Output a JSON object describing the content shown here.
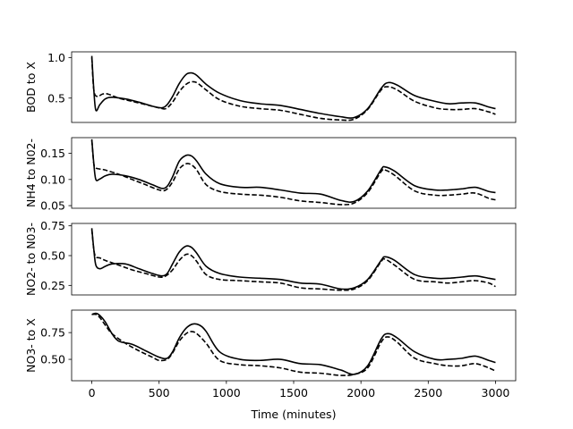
{
  "chart_data": {
    "type": "line",
    "xlabel": "Time (minutes)",
    "xlim": [
      -150,
      3150
    ],
    "xticks": [
      0,
      500,
      1000,
      1500,
      2000,
      2500,
      3000
    ],
    "xtick_labels": [
      "0",
      "500",
      "1000",
      "1500",
      "2000",
      "2500",
      "3000"
    ],
    "grid": false,
    "panels": [
      {
        "ylabel": "BOD to X",
        "ylim": [
          0.2,
          1.07
        ],
        "yticks": [
          0.5,
          1.0
        ],
        "ytick_labels": [
          "0.5",
          "1.0"
        ],
        "series": [
          {
            "style": "solid",
            "x": [
              0,
              15,
              30,
              60,
              100,
              150,
              250,
              350,
              450,
              520,
              560,
              600,
              650,
              700,
              740,
              780,
              850,
              950,
              1100,
              1250,
              1400,
              1550,
              1700,
              1850,
              1950,
              2050,
              2150,
              2200,
              2270,
              2400,
              2550,
              2650,
              2750,
              2850,
              2950,
              3000
            ],
            "y": [
              1.02,
              0.6,
              0.35,
              0.42,
              0.49,
              0.51,
              0.49,
              0.45,
              0.4,
              0.38,
              0.42,
              0.52,
              0.68,
              0.79,
              0.81,
              0.78,
              0.67,
              0.56,
              0.47,
              0.43,
              0.41,
              0.36,
              0.31,
              0.27,
              0.26,
              0.37,
              0.62,
              0.69,
              0.66,
              0.53,
              0.46,
              0.43,
              0.44,
              0.44,
              0.39,
              0.37
            ]
          },
          {
            "style": "dashed",
            "x": [
              0,
              15,
              40,
              80,
              120,
              200,
              300,
              400,
              500,
              550,
              600,
              650,
              700,
              740,
              780,
              850,
              950,
              1100,
              1250,
              1400,
              1550,
              1700,
              1850,
              1950,
              2050,
              2150,
              2200,
              2270,
              2400,
              2550,
              2650,
              2750,
              2850,
              2950,
              3000
            ],
            "y": [
              1.0,
              0.6,
              0.52,
              0.55,
              0.55,
              0.5,
              0.46,
              0.42,
              0.38,
              0.37,
              0.45,
              0.58,
              0.67,
              0.7,
              0.69,
              0.6,
              0.48,
              0.4,
              0.37,
              0.35,
              0.3,
              0.25,
              0.23,
              0.24,
              0.36,
              0.6,
              0.64,
              0.6,
              0.46,
              0.38,
              0.36,
              0.36,
              0.37,
              0.33,
              0.3
            ]
          }
        ]
      },
      {
        "ylabel": "NH4 to N02-",
        "ylim": [
          0.045,
          0.18
        ],
        "yticks": [
          0.05,
          0.1,
          0.15
        ],
        "ytick_labels": [
          "0.05",
          "0.10",
          "0.15"
        ],
        "series": [
          {
            "style": "solid",
            "x": [
              0,
              15,
              30,
              60,
              100,
              150,
              250,
              350,
              450,
              520,
              560,
              600,
              650,
              700,
              740,
              780,
              850,
              950,
              1100,
              1250,
              1400,
              1550,
              1700,
              1850,
              1950,
              2050,
              2150,
              2180,
              2250,
              2400,
              2550,
              2650,
              2750,
              2850,
              2950,
              3000
            ],
            "y": [
              0.177,
              0.13,
              0.1,
              0.101,
              0.107,
              0.11,
              0.107,
              0.1,
              0.09,
              0.083,
              0.087,
              0.105,
              0.135,
              0.146,
              0.145,
              0.135,
              0.11,
              0.092,
              0.085,
              0.085,
              0.08,
              0.074,
              0.072,
              0.06,
              0.058,
              0.078,
              0.119,
              0.124,
              0.116,
              0.088,
              0.08,
              0.08,
              0.082,
              0.085,
              0.077,
              0.075
            ]
          },
          {
            "style": "dashed",
            "x": [
              0,
              15,
              30,
              60,
              100,
              200,
              300,
              400,
              500,
              550,
              600,
              650,
              700,
              740,
              780,
              850,
              950,
              1100,
              1250,
              1400,
              1550,
              1700,
              1850,
              1950,
              2050,
              2150,
              2180,
              2250,
              2400,
              2550,
              2650,
              2750,
              2850,
              2950,
              3000
            ],
            "y": [
              0.175,
              0.13,
              0.122,
              0.12,
              0.118,
              0.11,
              0.1,
              0.09,
              0.08,
              0.08,
              0.095,
              0.12,
              0.13,
              0.128,
              0.118,
              0.09,
              0.077,
              0.072,
              0.07,
              0.066,
              0.059,
              0.056,
              0.052,
              0.055,
              0.075,
              0.115,
              0.118,
              0.108,
              0.078,
              0.07,
              0.07,
              0.072,
              0.074,
              0.064,
              0.061
            ]
          }
        ]
      },
      {
        "ylabel": "NO2- to N03-",
        "ylim": [
          0.17,
          0.77
        ],
        "yticks": [
          0.25,
          0.5,
          0.75
        ],
        "ytick_labels": [
          "0.25",
          "0.50",
          "0.75"
        ],
        "series": [
          {
            "style": "solid",
            "x": [
              0,
              15,
              30,
              60,
              100,
              150,
              250,
              350,
              450,
              520,
              560,
              600,
              650,
              700,
              740,
              780,
              850,
              950,
              1100,
              1250,
              1400,
              1550,
              1700,
              1850,
              1950,
              2050,
              2150,
              2180,
              2250,
              2400,
              2550,
              2650,
              2750,
              2850,
              2950,
              3000
            ],
            "y": [
              0.73,
              0.55,
              0.42,
              0.39,
              0.41,
              0.43,
              0.43,
              0.39,
              0.35,
              0.33,
              0.35,
              0.43,
              0.53,
              0.58,
              0.57,
              0.52,
              0.41,
              0.35,
              0.32,
              0.31,
              0.3,
              0.27,
              0.26,
              0.22,
              0.23,
              0.3,
              0.46,
              0.49,
              0.46,
              0.34,
              0.31,
              0.31,
              0.32,
              0.33,
              0.31,
              0.3
            ]
          },
          {
            "style": "dashed",
            "x": [
              0,
              15,
              30,
              60,
              100,
              200,
              300,
              400,
              500,
              550,
              600,
              650,
              700,
              740,
              780,
              850,
              950,
              1100,
              1250,
              1400,
              1550,
              1700,
              1850,
              1950,
              2050,
              2150,
              2180,
              2250,
              2400,
              2550,
              2650,
              2750,
              2850,
              2950,
              3000
            ],
            "y": [
              0.72,
              0.55,
              0.49,
              0.48,
              0.46,
              0.42,
              0.38,
              0.35,
              0.32,
              0.33,
              0.38,
              0.46,
              0.51,
              0.5,
              0.45,
              0.34,
              0.3,
              0.29,
              0.28,
              0.27,
              0.23,
              0.22,
              0.21,
              0.22,
              0.29,
              0.45,
              0.47,
              0.42,
              0.3,
              0.28,
              0.27,
              0.28,
              0.29,
              0.27,
              0.24
            ]
          }
        ]
      },
      {
        "ylabel": "NO3- to X",
        "ylim": [
          0.3,
          0.96
        ],
        "yticks": [
          0.5,
          0.75
        ],
        "ytick_labels": [
          "0.50",
          "0.75"
        ],
        "series": [
          {
            "style": "solid",
            "x": [
              0,
              30,
              60,
              100,
              150,
              200,
              300,
              400,
              500,
              560,
              600,
              650,
              700,
              750,
              800,
              850,
              950,
              1100,
              1250,
              1400,
              1550,
              1700,
              1850,
              1950,
              2050,
              2150,
              2200,
              2270,
              2400,
              2550,
              2650,
              2750,
              2850,
              2950,
              3000
            ],
            "y": [
              0.92,
              0.93,
              0.91,
              0.85,
              0.74,
              0.67,
              0.64,
              0.58,
              0.52,
              0.51,
              0.57,
              0.7,
              0.79,
              0.83,
              0.82,
              0.76,
              0.57,
              0.5,
              0.49,
              0.5,
              0.46,
              0.45,
              0.4,
              0.36,
              0.44,
              0.69,
              0.74,
              0.7,
              0.57,
              0.5,
              0.5,
              0.51,
              0.53,
              0.49,
              0.47
            ]
          },
          {
            "style": "dashed",
            "x": [
              0,
              30,
              60,
              100,
              150,
              250,
              350,
              450,
              500,
              560,
              600,
              650,
              700,
              740,
              780,
              850,
              950,
              1100,
              1250,
              1400,
              1550,
              1700,
              1850,
              1950,
              2050,
              2150,
              2200,
              2270,
              2400,
              2550,
              2650,
              2750,
              2850,
              2950,
              3000
            ],
            "y": [
              0.92,
              0.92,
              0.89,
              0.82,
              0.74,
              0.65,
              0.58,
              0.52,
              0.49,
              0.5,
              0.56,
              0.67,
              0.74,
              0.76,
              0.74,
              0.65,
              0.49,
              0.45,
              0.44,
              0.42,
              0.38,
              0.37,
              0.35,
              0.36,
              0.42,
              0.66,
              0.71,
              0.66,
              0.51,
              0.46,
              0.44,
              0.44,
              0.46,
              0.42,
              0.39
            ]
          }
        ]
      }
    ]
  }
}
